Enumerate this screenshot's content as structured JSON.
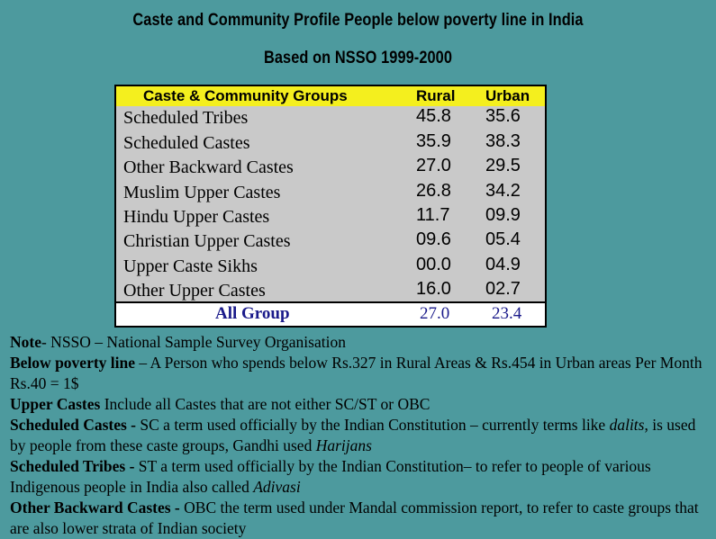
{
  "title_line1": "Caste and Community Profile People below poverty line in India",
  "title_line2": "Based on NSSO 1999-2000",
  "table": {
    "headers": {
      "group": "Caste & Community Groups",
      "rural": "Rural",
      "urban": "Urban"
    },
    "rows": [
      {
        "name": "Scheduled Tribes",
        "rural": "45.8",
        "urban": "35.6"
      },
      {
        "name": "Scheduled Castes",
        "rural": "35.9",
        "urban": "38.3"
      },
      {
        "name": "Other Backward Castes",
        "rural": "27.0",
        "urban": "29.5"
      },
      {
        "name": "Muslim Upper Castes",
        "rural": "26.8",
        "urban": "34.2"
      },
      {
        "name": "Hindu Upper Castes",
        "rural": "11.7",
        "urban": "09.9"
      },
      {
        "name": "Christian Upper Castes",
        "rural": "09.6",
        "urban": "05.4"
      },
      {
        "name": "Upper Caste Sikhs",
        "rural": "00.0",
        "urban": "04.9"
      },
      {
        "name": "Other Upper Castes",
        "rural": "16.0",
        "urban": "02.7"
      }
    ],
    "total": {
      "name": "All Group",
      "rural": "27.0",
      "urban": "23.4"
    }
  },
  "notes": {
    "n1_label": "Note",
    "n1_text": "- NSSO – National Sample Survey Organisation",
    "n2_label": "Below poverty line",
    "n2_text": " – A Person who spends below Rs.327 in Rural Areas & Rs.454 in Urban areas Per Month Rs.40 = 1$",
    "n3_label": "Upper Castes",
    "n3_text": " Include all Castes that are not either SC/ST or OBC",
    "n4_label": "Scheduled Castes -",
    "n4_text": " SC a term used officially by the Indian Constitution – currently terms like ",
    "n4_italic1": "dalits",
    "n4_text2": ", is used by people from these caste groups, Gandhi used ",
    "n4_italic2": "Harijans",
    "n5_label": "Scheduled Tribes -",
    "n5_text": " ST a term used officially by the Indian Constitution– to refer to people of various Indigenous people in India also called ",
    "n5_italic": "Adivasi",
    "n6_label": "Other Backward Castes -",
    "n6_text": " OBC the term used under Mandal commission report, to refer to caste groups that are also lower strata of Indian society"
  },
  "colors": {
    "background": "#4d9a9e",
    "header_bg": "#f4ef1e",
    "table_bg": "#c9c9c9",
    "total_text": "#1a1a8a"
  }
}
